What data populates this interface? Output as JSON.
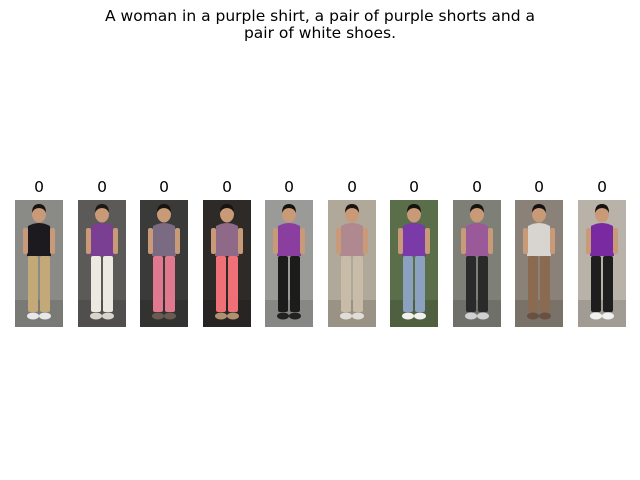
{
  "query": {
    "line1": "A woman in a purple shirt, a pair of purple shorts and a",
    "line2": "pair of white shoes."
  },
  "results": [
    {
      "score": "0",
      "bg": "#8a8a86",
      "top": "#1c1a1f",
      "bottom": "#c2a977",
      "shoes": "#e8e8e8",
      "hair": "#1a1410"
    },
    {
      "score": "0",
      "bg": "#5c5a58",
      "top": "#7a3e92",
      "bottom": "#ece8e2",
      "shoes": "#d9d4cc",
      "hair": "#1e1814"
    },
    {
      "score": "0",
      "bg": "#3a3a38",
      "top": "#7a6a82",
      "bottom": "#e07890",
      "shoes": "#6a5a50",
      "hair": "#1a1410"
    },
    {
      "score": "0",
      "bg": "#2e2a28",
      "top": "#8e6a88",
      "bottom": "#f07078",
      "shoes": "#b09070",
      "hair": "#1a1410"
    },
    {
      "score": "0",
      "bg": "#9a9a98",
      "top": "#8a3ea0",
      "bottom": "#1c1c1c",
      "shoes": "#222222",
      "hair": "#151210"
    },
    {
      "score": "0",
      "bg": "#b0a898",
      "top": "#b08890",
      "bottom": "#c8bca8",
      "shoes": "#e0ddd8",
      "hair": "#1a1410"
    },
    {
      "score": "0",
      "bg": "#5a6e4a",
      "top": "#7a3aa8",
      "bottom": "#8ca0c0",
      "shoes": "#f0f0f0",
      "hair": "#151210"
    },
    {
      "score": "0",
      "bg": "#7e8078",
      "top": "#9a5a9a",
      "bottom": "#2a2a2a",
      "shoes": "#d0d0d0",
      "hair": "#1a1410"
    },
    {
      "score": "0",
      "bg": "#8a8278",
      "top": "#d8d4d0",
      "bottom": "#8a6a50",
      "shoes": "#6a5040",
      "hair": "#151210"
    },
    {
      "score": "0",
      "bg": "#b8b2a8",
      "top": "#7a2aa0",
      "bottom": "#1e1e1e",
      "shoes": "#f0f0f0",
      "hair": "#151210"
    }
  ]
}
